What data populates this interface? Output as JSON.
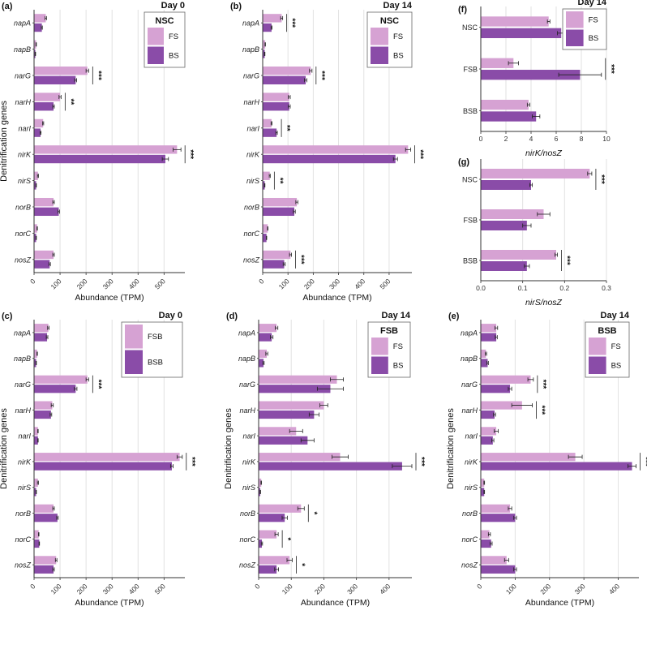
{
  "colors": {
    "light": "#d6a2d3",
    "dark": "#8a4ca8",
    "axis": "#333333",
    "grid": "#e2e2e2",
    "err": "#222222"
  },
  "chart_data": [
    {
      "id": "a",
      "panel_label": "(a)",
      "title": "Day 0",
      "type": "bar",
      "orientation": "horizontal",
      "xlabel": "Abundance (TPM)",
      "ylabel": "Denitrification genes",
      "xlim": [
        0,
        580
      ],
      "xticks": [
        0,
        100,
        200,
        300,
        400,
        500
      ],
      "legend": {
        "title": "NSC",
        "placement": "top-right"
      },
      "categories": [
        "napA",
        "napB",
        "narG",
        "narH",
        "narI",
        "nirK",
        "nirS",
        "norB",
        "norC",
        "nosZ"
      ],
      "series": [
        {
          "name": "FS",
          "values": [
            45,
            8,
            205,
            100,
            35,
            550,
            15,
            75,
            12,
            75
          ],
          "err": [
            3,
            1,
            5,
            4,
            2,
            15,
            2,
            3,
            1,
            3
          ]
        },
        {
          "name": "BS",
          "values": [
            30,
            5,
            160,
            75,
            25,
            505,
            8,
            95,
            8,
            60
          ],
          "err": [
            2,
            1,
            4,
            3,
            2,
            12,
            1,
            3,
            1,
            3
          ]
        }
      ],
      "significance": [
        {
          "category": "narG",
          "label": "***"
        },
        {
          "category": "narH",
          "label": "**"
        },
        {
          "category": "nirK",
          "label": "***"
        }
      ]
    },
    {
      "id": "b",
      "panel_label": "(b)",
      "title": "Day 14",
      "type": "bar",
      "orientation": "horizontal",
      "xlabel": "Abundance (TPM)",
      "ylabel": "",
      "xlim": [
        0,
        590
      ],
      "xticks": [
        0,
        100,
        200,
        300,
        400,
        500
      ],
      "legend": {
        "title": "NSC",
        "placement": "top-right"
      },
      "categories": [
        "napA",
        "napB",
        "narG",
        "narH",
        "narI",
        "nirK",
        "nirS",
        "norB",
        "norC",
        "nosZ"
      ],
      "series": [
        {
          "name": "FS",
          "values": [
            75,
            10,
            190,
            105,
            35,
            575,
            28,
            135,
            20,
            110
          ],
          "err": [
            4,
            1,
            5,
            4,
            2,
            10,
            2,
            4,
            1,
            4
          ]
        },
        {
          "name": "BS",
          "values": [
            35,
            8,
            170,
            105,
            55,
            525,
            8,
            125,
            15,
            85
          ],
          "err": [
            2,
            1,
            5,
            4,
            3,
            8,
            1,
            4,
            1,
            4
          ]
        }
      ],
      "significance": [
        {
          "category": "napA",
          "label": "***"
        },
        {
          "category": "narG",
          "label": "***"
        },
        {
          "category": "narI",
          "label": "**"
        },
        {
          "category": "nirK",
          "label": "***"
        },
        {
          "category": "nirS",
          "label": "**"
        },
        {
          "category": "nosZ",
          "label": "***"
        }
      ]
    },
    {
      "id": "f",
      "panel_label": "(f)",
      "title": "Day 14",
      "type": "bar",
      "orientation": "horizontal",
      "xlabel": "nirK/nosZ",
      "ylabel": "",
      "xlim": [
        0,
        10
      ],
      "xticks": [
        0,
        2,
        4,
        6,
        8,
        10
      ],
      "legend": {
        "title": "",
        "placement": "top-right"
      },
      "categories": [
        "NSC",
        "FSB",
        "BSB"
      ],
      "series": [
        {
          "name": "FS",
          "values": [
            5.4,
            2.6,
            3.8
          ],
          "err": [
            0.1,
            0.4,
            0.1
          ]
        },
        {
          "name": "BS",
          "values": [
            6.4,
            7.9,
            4.4
          ],
          "err": [
            0.3,
            1.7,
            0.3
          ]
        }
      ],
      "significance": [
        {
          "category": "FSB",
          "label": "***"
        }
      ]
    },
    {
      "id": "g",
      "panel_label": "(g)",
      "title": "",
      "type": "bar",
      "orientation": "horizontal",
      "xlabel": "nirS/nosZ",
      "ylabel": "",
      "xlim": [
        0,
        0.3
      ],
      "xticks": [
        0.0,
        0.1,
        0.2,
        0.3
      ],
      "legend": {
        "title": "",
        "placement": "none"
      },
      "categories": [
        "NSC",
        "FSB",
        "BSB"
      ],
      "series": [
        {
          "name": "FS",
          "values": [
            0.26,
            0.15,
            0.18
          ],
          "err": [
            0.005,
            0.015,
            0.003
          ]
        },
        {
          "name": "BS",
          "values": [
            0.12,
            0.11,
            0.11
          ],
          "err": [
            0.003,
            0.01,
            0.006
          ]
        }
      ],
      "significance": [
        {
          "category": "NSC",
          "label": "***"
        },
        {
          "category": "BSB",
          "label": "***"
        }
      ]
    },
    {
      "id": "c",
      "panel_label": "(c)",
      "title": "Day 0",
      "type": "bar",
      "orientation": "horizontal",
      "xlabel": "Abundance (TPM)",
      "ylabel": "Denitrification genes",
      "xlim": [
        0,
        580
      ],
      "xticks": [
        0,
        100,
        200,
        300,
        400,
        500
      ],
      "legend": {
        "title": "",
        "placement": "top-right"
      },
      "categories": [
        "napA",
        "napB",
        "narG",
        "narH",
        "narI",
        "nirK",
        "nirS",
        "norB",
        "norC",
        "nosZ"
      ],
      "series": [
        {
          "name": "FSB",
          "values": [
            55,
            12,
            205,
            70,
            15,
            560,
            15,
            75,
            18,
            85
          ],
          "err": [
            3,
            1,
            5,
            4,
            1,
            10,
            2,
            3,
            1,
            3
          ]
        },
        {
          "name": "BSB",
          "values": [
            50,
            8,
            160,
            65,
            15,
            530,
            8,
            90,
            20,
            75
          ],
          "err": [
            3,
            1,
            5,
            3,
            1,
            5,
            1,
            3,
            1,
            3
          ]
        }
      ],
      "significance": [
        {
          "category": "narG",
          "label": "***"
        },
        {
          "category": "nirK",
          "label": "***"
        }
      ]
    },
    {
      "id": "d",
      "panel_label": "(d)",
      "title": "Day 14",
      "type": "bar",
      "orientation": "horizontal",
      "xlabel": "Abundance (TPM)",
      "ylabel": "Denitrification genes",
      "xlim": [
        0,
        470
      ],
      "xticks": [
        0,
        100,
        200,
        300,
        400
      ],
      "legend": {
        "title": "FSB",
        "placement": "top-right"
      },
      "categories": [
        "napA",
        "napB",
        "narG",
        "narH",
        "narI",
        "nirK",
        "nirS",
        "norB",
        "norC",
        "nosZ"
      ],
      "series": [
        {
          "name": "FS",
          "values": [
            55,
            25,
            240,
            200,
            115,
            250,
            8,
            130,
            55,
            95
          ],
          "err": [
            4,
            3,
            20,
            12,
            20,
            25,
            1,
            10,
            5,
            8
          ]
        },
        {
          "name": "BS",
          "values": [
            40,
            15,
            220,
            170,
            150,
            440,
            5,
            80,
            10,
            55
          ],
          "err": [
            4,
            2,
            40,
            15,
            20,
            30,
            1,
            8,
            2,
            6
          ]
        }
      ],
      "significance": [
        {
          "category": "nirK",
          "label": "***"
        },
        {
          "category": "norB",
          "label": "*"
        },
        {
          "category": "norC",
          "label": "*"
        },
        {
          "category": "nosZ",
          "label": "*"
        }
      ]
    },
    {
      "id": "e",
      "panel_label": "(e)",
      "title": "Day 14",
      "type": "bar",
      "orientation": "horizontal",
      "xlabel": "Abundance (TPM)",
      "ylabel": "Denitrification genes",
      "xlim": [
        0,
        460
      ],
      "xticks": [
        0,
        100,
        200,
        300,
        400
      ],
      "legend": {
        "title": "BSB",
        "placement": "top-right"
      },
      "categories": [
        "napA",
        "napB",
        "narG",
        "narH",
        "narI",
        "nirK",
        "nirS",
        "norB",
        "norC",
        "nosZ"
      ],
      "series": [
        {
          "name": "FS",
          "values": [
            45,
            15,
            145,
            120,
            45,
            275,
            10,
            85,
            25,
            75
          ],
          "err": [
            4,
            2,
            8,
            30,
            6,
            20,
            1,
            5,
            3,
            6
          ]
        },
        {
          "name": "BS",
          "values": [
            45,
            20,
            85,
            40,
            35,
            440,
            10,
            100,
            30,
            100
          ],
          "err": [
            3,
            2,
            5,
            3,
            3,
            12,
            1,
            4,
            3,
            4
          ]
        }
      ],
      "significance": [
        {
          "category": "narG",
          "label": "***"
        },
        {
          "category": "narH",
          "label": "***"
        },
        {
          "category": "nirK",
          "label": "***"
        }
      ]
    }
  ]
}
